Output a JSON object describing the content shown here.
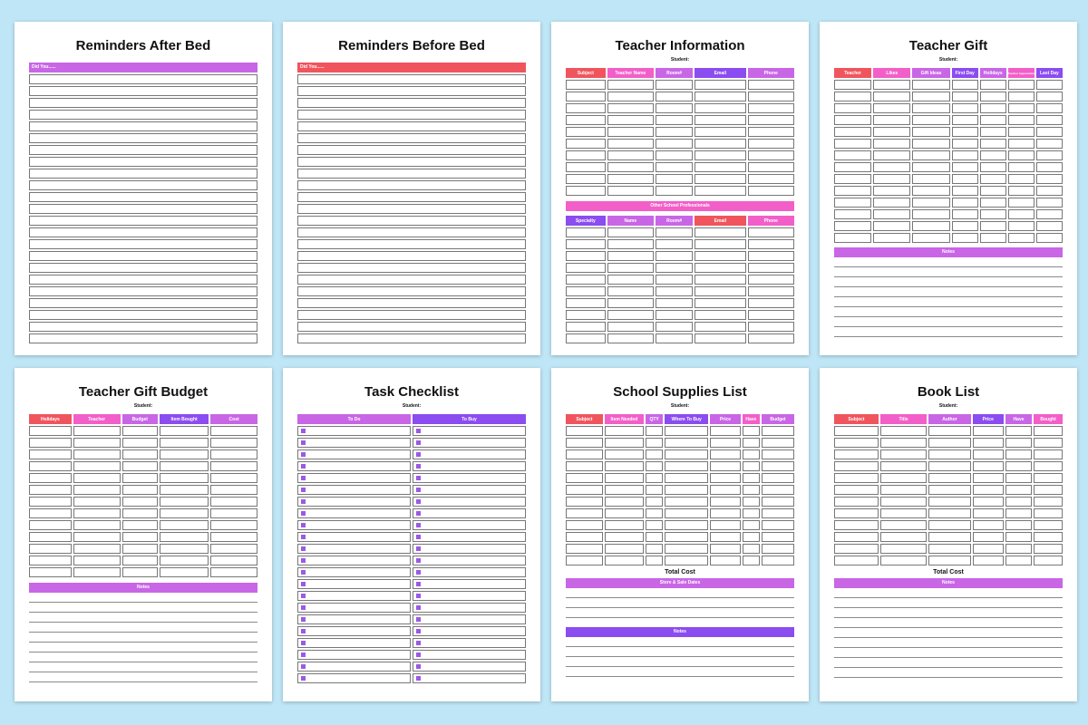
{
  "colors": {
    "red": "#f0555d",
    "pink": "#f25fc8",
    "violet": "#c866e6",
    "purple": "#8b4cf0",
    "bg": "#bfe6f6"
  },
  "pages": {
    "p1": {
      "title": "Reminders After Bed",
      "bar": "Did You......"
    },
    "p2": {
      "title": "Reminders Before Bed",
      "bar": "Did You......"
    },
    "p3": {
      "title": "Teacher Information",
      "student": "Student:",
      "headers": [
        "Subject",
        "Teacher Name",
        "Room#",
        "Email",
        "Phone"
      ],
      "section": "Other School Professionals",
      "headers2": [
        "Specialty",
        "Name",
        "Room#",
        "Email",
        "Phone"
      ]
    },
    "p4": {
      "title": "Teacher Gift",
      "student": "Student:",
      "headers": [
        "Teacher",
        "Likes",
        "Gift Ideas",
        "First Day",
        "Holidays",
        "Teacher Appreciation",
        "Last Day"
      ],
      "notes": "Notes"
    },
    "p5": {
      "title": "Teacher Gift Budget",
      "student": "Student:",
      "headers": [
        "Holidays",
        "Teacher",
        "Budget",
        "Item Bought",
        "Cost"
      ],
      "notes": "Notes"
    },
    "p6": {
      "title": "Task Checklist",
      "student": "Student:",
      "headers": [
        "To Do",
        "To Buy"
      ]
    },
    "p7": {
      "title": "School Supplies List",
      "student": "Student:",
      "headers": [
        "Subject",
        "Item Needed",
        "QTY",
        "Where To Buy",
        "Price",
        "Have",
        "Budget"
      ],
      "total": "Total Cost",
      "section": "Store & Sale Dates",
      "notes": "Notes"
    },
    "p8": {
      "title": "Book List",
      "student": "Student:",
      "headers": [
        "Subject",
        "Title",
        "Author",
        "Price",
        "Have",
        "Bought"
      ],
      "total": "Total Cost",
      "notes": "Notes"
    }
  }
}
